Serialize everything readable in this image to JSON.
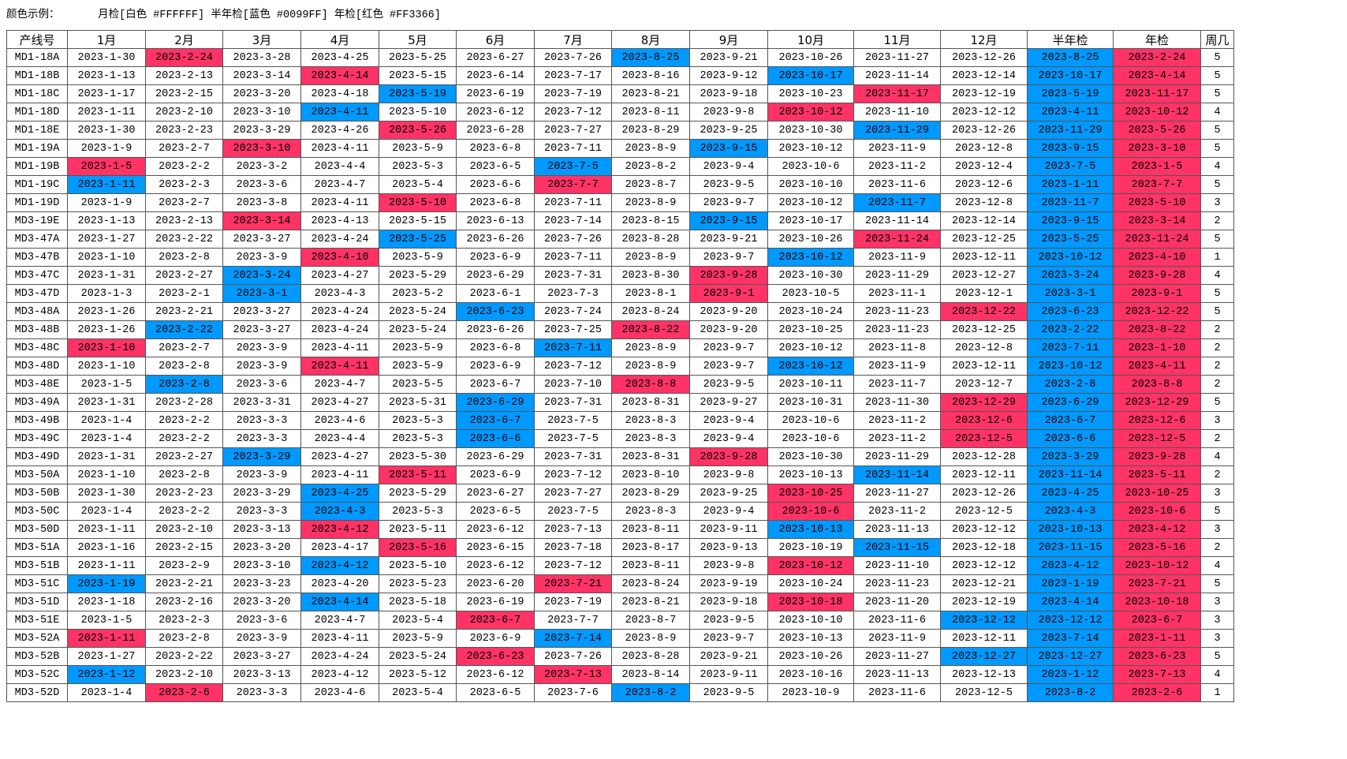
{
  "legend": {
    "label": "颜色示例：",
    "monthly": "月检[白色 #FFFFFF]",
    "half_year": "半年检[蓝色 #0099FF]",
    "yearly": "年检[红色 #FF3366]"
  },
  "colors": {
    "monthly": "#FFFFFF",
    "half_year": "#0099FF",
    "yearly": "#FF3366"
  },
  "columns": [
    "产线号",
    "1月",
    "2月",
    "3月",
    "4月",
    "5月",
    "6月",
    "7月",
    "8月",
    "9月",
    "10月",
    "11月",
    "12月",
    "半年检",
    "年检",
    "周几"
  ],
  "rows": [
    {
      "line": "MD1-18A",
      "months": [
        "2023-1-30",
        "2023-2-24",
        "2023-3-28",
        "2023-4-25",
        "2023-5-25",
        "2023-6-27",
        "2023-7-26",
        "2023-8-25",
        "2023-9-21",
        "2023-10-26",
        "2023-11-27",
        "2023-12-26"
      ],
      "half": "2023-8-25",
      "year": "2023-2-24",
      "weekday": "5",
      "blue": 8,
      "red": 2
    },
    {
      "line": "MD1-18B",
      "months": [
        "2023-1-13",
        "2023-2-13",
        "2023-3-14",
        "2023-4-14",
        "2023-5-15",
        "2023-6-14",
        "2023-7-17",
        "2023-8-16",
        "2023-9-12",
        "2023-10-17",
        "2023-11-14",
        "2023-12-14"
      ],
      "half": "2023-10-17",
      "year": "2023-4-14",
      "weekday": "5",
      "blue": 10,
      "red": 4
    },
    {
      "line": "MD1-18C",
      "months": [
        "2023-1-17",
        "2023-2-15",
        "2023-3-20",
        "2023-4-18",
        "2023-5-19",
        "2023-6-19",
        "2023-7-19",
        "2023-8-21",
        "2023-9-18",
        "2023-10-23",
        "2023-11-17",
        "2023-12-19"
      ],
      "half": "2023-5-19",
      "year": "2023-11-17",
      "weekday": "5",
      "blue": 5,
      "red": 11
    },
    {
      "line": "MD1-18D",
      "months": [
        "2023-1-11",
        "2023-2-10",
        "2023-3-10",
        "2023-4-11",
        "2023-5-10",
        "2023-6-12",
        "2023-7-12",
        "2023-8-11",
        "2023-9-8",
        "2023-10-12",
        "2023-11-10",
        "2023-12-12"
      ],
      "half": "2023-4-11",
      "year": "2023-10-12",
      "weekday": "4",
      "blue": 4,
      "red": 10
    },
    {
      "line": "MD1-18E",
      "months": [
        "2023-1-30",
        "2023-2-23",
        "2023-3-29",
        "2023-4-26",
        "2023-5-26",
        "2023-6-28",
        "2023-7-27",
        "2023-8-29",
        "2023-9-25",
        "2023-10-30",
        "2023-11-29",
        "2023-12-26"
      ],
      "half": "2023-11-29",
      "year": "2023-5-26",
      "weekday": "5",
      "blue": 11,
      "red": 5
    },
    {
      "line": "MD1-19A",
      "months": [
        "2023-1-9",
        "2023-2-7",
        "2023-3-10",
        "2023-4-11",
        "2023-5-9",
        "2023-6-8",
        "2023-7-11",
        "2023-8-9",
        "2023-9-15",
        "2023-10-12",
        "2023-11-9",
        "2023-12-8"
      ],
      "half": "2023-9-15",
      "year": "2023-3-10",
      "weekday": "5",
      "blue": 9,
      "red": 3
    },
    {
      "line": "MD1-19B",
      "months": [
        "2023-1-5",
        "2023-2-2",
        "2023-3-2",
        "2023-4-4",
        "2023-5-3",
        "2023-6-5",
        "2023-7-5",
        "2023-8-2",
        "2023-9-4",
        "2023-10-6",
        "2023-11-2",
        "2023-12-4"
      ],
      "half": "2023-7-5",
      "year": "2023-1-5",
      "weekday": "4",
      "blue": 7,
      "red": 1
    },
    {
      "line": "MD1-19C",
      "months": [
        "2023-1-11",
        "2023-2-3",
        "2023-3-6",
        "2023-4-7",
        "2023-5-4",
        "2023-6-6",
        "2023-7-7",
        "2023-8-7",
        "2023-9-5",
        "2023-10-10",
        "2023-11-6",
        "2023-12-6"
      ],
      "half": "2023-1-11",
      "year": "2023-7-7",
      "weekday": "5",
      "blue": 1,
      "red": 7
    },
    {
      "line": "MD1-19D",
      "months": [
        "2023-1-9",
        "2023-2-7",
        "2023-3-8",
        "2023-4-11",
        "2023-5-10",
        "2023-6-8",
        "2023-7-11",
        "2023-8-9",
        "2023-9-7",
        "2023-10-12",
        "2023-11-7",
        "2023-12-8"
      ],
      "half": "2023-11-7",
      "year": "2023-5-10",
      "weekday": "3",
      "blue": 11,
      "red": 5
    },
    {
      "line": "MD3-19E",
      "months": [
        "2023-1-13",
        "2023-2-13",
        "2023-3-14",
        "2023-4-13",
        "2023-5-15",
        "2023-6-13",
        "2023-7-14",
        "2023-8-15",
        "2023-9-15",
        "2023-10-17",
        "2023-11-14",
        "2023-12-14"
      ],
      "half": "2023-9-15",
      "year": "2023-3-14",
      "weekday": "2",
      "blue": 9,
      "red": 3
    },
    {
      "line": "MD3-47A",
      "months": [
        "2023-1-27",
        "2023-2-22",
        "2023-3-27",
        "2023-4-24",
        "2023-5-25",
        "2023-6-26",
        "2023-7-26",
        "2023-8-28",
        "2023-9-21",
        "2023-10-26",
        "2023-11-24",
        "2023-12-25"
      ],
      "half": "2023-5-25",
      "year": "2023-11-24",
      "weekday": "5",
      "blue": 5,
      "red": 11
    },
    {
      "line": "MD3-47B",
      "months": [
        "2023-1-10",
        "2023-2-8",
        "2023-3-9",
        "2023-4-10",
        "2023-5-9",
        "2023-6-9",
        "2023-7-11",
        "2023-8-9",
        "2023-9-7",
        "2023-10-12",
        "2023-11-9",
        "2023-12-11"
      ],
      "half": "2023-10-12",
      "year": "2023-4-10",
      "weekday": "1",
      "blue": 10,
      "red": 4
    },
    {
      "line": "MD3-47C",
      "months": [
        "2023-1-31",
        "2023-2-27",
        "2023-3-24",
        "2023-4-27",
        "2023-5-29",
        "2023-6-29",
        "2023-7-31",
        "2023-8-30",
        "2023-9-28",
        "2023-10-30",
        "2023-11-29",
        "2023-12-27"
      ],
      "half": "2023-3-24",
      "year": "2023-9-28",
      "weekday": "4",
      "blue": 3,
      "red": 9
    },
    {
      "line": "MD3-47D",
      "months": [
        "2023-1-3",
        "2023-2-1",
        "2023-3-1",
        "2023-4-3",
        "2023-5-2",
        "2023-6-1",
        "2023-7-3",
        "2023-8-1",
        "2023-9-1",
        "2023-10-5",
        "2023-11-1",
        "2023-12-1"
      ],
      "half": "2023-3-1",
      "year": "2023-9-1",
      "weekday": "5",
      "blue": 3,
      "red": 9
    },
    {
      "line": "MD3-48A",
      "months": [
        "2023-1-26",
        "2023-2-21",
        "2023-3-27",
        "2023-4-24",
        "2023-5-24",
        "2023-6-23",
        "2023-7-24",
        "2023-8-24",
        "2023-9-20",
        "2023-10-24",
        "2023-11-23",
        "2023-12-22"
      ],
      "half": "2023-6-23",
      "year": "2023-12-22",
      "weekday": "5",
      "blue": 6,
      "red": 12
    },
    {
      "line": "MD3-48B",
      "months": [
        "2023-1-26",
        "2023-2-22",
        "2023-3-27",
        "2023-4-24",
        "2023-5-24",
        "2023-6-26",
        "2023-7-25",
        "2023-8-22",
        "2023-9-20",
        "2023-10-25",
        "2023-11-23",
        "2023-12-25"
      ],
      "half": "2023-2-22",
      "year": "2023-8-22",
      "weekday": "2",
      "blue": 2,
      "red": 8
    },
    {
      "line": "MD3-48C",
      "months": [
        "2023-1-10",
        "2023-2-7",
        "2023-3-9",
        "2023-4-11",
        "2023-5-9",
        "2023-6-8",
        "2023-7-11",
        "2023-8-9",
        "2023-9-7",
        "2023-10-12",
        "2023-11-8",
        "2023-12-8"
      ],
      "half": "2023-7-11",
      "year": "2023-1-10",
      "weekday": "2",
      "blue": 7,
      "red": 1
    },
    {
      "line": "MD3-48D",
      "months": [
        "2023-1-10",
        "2023-2-8",
        "2023-3-9",
        "2023-4-11",
        "2023-5-9",
        "2023-6-9",
        "2023-7-12",
        "2023-8-9",
        "2023-9-7",
        "2023-10-12",
        "2023-11-9",
        "2023-12-11"
      ],
      "half": "2023-10-12",
      "year": "2023-4-11",
      "weekday": "2",
      "blue": 10,
      "red": 4
    },
    {
      "line": "MD3-48E",
      "months": [
        "2023-1-5",
        "2023-2-8",
        "2023-3-6",
        "2023-4-7",
        "2023-5-5",
        "2023-6-7",
        "2023-7-10",
        "2023-8-8",
        "2023-9-5",
        "2023-10-11",
        "2023-11-7",
        "2023-12-7"
      ],
      "half": "2023-2-8",
      "year": "2023-8-8",
      "weekday": "2",
      "blue": 2,
      "red": 8
    },
    {
      "line": "MD3-49A",
      "months": [
        "2023-1-31",
        "2023-2-28",
        "2023-3-31",
        "2023-4-27",
        "2023-5-31",
        "2023-6-29",
        "2023-7-31",
        "2023-8-31",
        "2023-9-27",
        "2023-10-31",
        "2023-11-30",
        "2023-12-29"
      ],
      "half": "2023-6-29",
      "year": "2023-12-29",
      "weekday": "5",
      "blue": 6,
      "red": 12
    },
    {
      "line": "MD3-49B",
      "months": [
        "2023-1-4",
        "2023-2-2",
        "2023-3-3",
        "2023-4-6",
        "2023-5-3",
        "2023-6-7",
        "2023-7-5",
        "2023-8-3",
        "2023-9-4",
        "2023-10-6",
        "2023-11-2",
        "2023-12-6"
      ],
      "half": "2023-6-7",
      "year": "2023-12-6",
      "weekday": "3",
      "blue": 6,
      "red": 12
    },
    {
      "line": "MD3-49C",
      "months": [
        "2023-1-4",
        "2023-2-2",
        "2023-3-3",
        "2023-4-4",
        "2023-5-3",
        "2023-6-6",
        "2023-7-5",
        "2023-8-3",
        "2023-9-4",
        "2023-10-6",
        "2023-11-2",
        "2023-12-5"
      ],
      "half": "2023-6-6",
      "year": "2023-12-5",
      "weekday": "2",
      "blue": 6,
      "red": 12
    },
    {
      "line": "MD3-49D",
      "months": [
        "2023-1-31",
        "2023-2-27",
        "2023-3-29",
        "2023-4-27",
        "2023-5-30",
        "2023-6-29",
        "2023-7-31",
        "2023-8-31",
        "2023-9-28",
        "2023-10-30",
        "2023-11-29",
        "2023-12-28"
      ],
      "half": "2023-3-29",
      "year": "2023-9-28",
      "weekday": "4",
      "blue": 3,
      "red": 9
    },
    {
      "line": "MD3-50A",
      "months": [
        "2023-1-10",
        "2023-2-8",
        "2023-3-9",
        "2023-4-11",
        "2023-5-11",
        "2023-6-9",
        "2023-7-12",
        "2023-8-10",
        "2023-9-8",
        "2023-10-13",
        "2023-11-14",
        "2023-12-11"
      ],
      "half": "2023-11-14",
      "year": "2023-5-11",
      "weekday": "2",
      "blue": 11,
      "red": 5
    },
    {
      "line": "MD3-50B",
      "months": [
        "2023-1-30",
        "2023-2-23",
        "2023-3-29",
        "2023-4-25",
        "2023-5-29",
        "2023-6-27",
        "2023-7-27",
        "2023-8-29",
        "2023-9-25",
        "2023-10-25",
        "2023-11-27",
        "2023-12-26"
      ],
      "half": "2023-4-25",
      "year": "2023-10-25",
      "weekday": "3",
      "blue": 4,
      "red": 10
    },
    {
      "line": "MD3-50C",
      "months": [
        "2023-1-4",
        "2023-2-2",
        "2023-3-3",
        "2023-4-3",
        "2023-5-3",
        "2023-6-5",
        "2023-7-5",
        "2023-8-3",
        "2023-9-4",
        "2023-10-6",
        "2023-11-2",
        "2023-12-5"
      ],
      "half": "2023-4-3",
      "year": "2023-10-6",
      "weekday": "5",
      "blue": 4,
      "red": 10
    },
    {
      "line": "MD3-50D",
      "months": [
        "2023-1-11",
        "2023-2-10",
        "2023-3-13",
        "2023-4-12",
        "2023-5-11",
        "2023-6-12",
        "2023-7-13",
        "2023-8-11",
        "2023-9-11",
        "2023-10-13",
        "2023-11-13",
        "2023-12-12"
      ],
      "half": "2023-10-13",
      "year": "2023-4-12",
      "weekday": "3",
      "blue": 10,
      "red": 4
    },
    {
      "line": "MD3-51A",
      "months": [
        "2023-1-16",
        "2023-2-15",
        "2023-3-20",
        "2023-4-17",
        "2023-5-16",
        "2023-6-15",
        "2023-7-18",
        "2023-8-17",
        "2023-9-13",
        "2023-10-19",
        "2023-11-15",
        "2023-12-18"
      ],
      "half": "2023-11-15",
      "year": "2023-5-16",
      "weekday": "2",
      "blue": 11,
      "red": 5
    },
    {
      "line": "MD3-51B",
      "months": [
        "2023-1-11",
        "2023-2-9",
        "2023-3-10",
        "2023-4-12",
        "2023-5-10",
        "2023-6-12",
        "2023-7-12",
        "2023-8-11",
        "2023-9-8",
        "2023-10-12",
        "2023-11-10",
        "2023-12-12"
      ],
      "half": "2023-4-12",
      "year": "2023-10-12",
      "weekday": "4",
      "blue": 4,
      "red": 10
    },
    {
      "line": "MD3-51C",
      "months": [
        "2023-1-19",
        "2023-2-21",
        "2023-3-23",
        "2023-4-20",
        "2023-5-23",
        "2023-6-20",
        "2023-7-21",
        "2023-8-24",
        "2023-9-19",
        "2023-10-24",
        "2023-11-23",
        "2023-12-21"
      ],
      "half": "2023-1-19",
      "year": "2023-7-21",
      "weekday": "5",
      "blue": 1,
      "red": 7
    },
    {
      "line": "MD3-51D",
      "months": [
        "2023-1-18",
        "2023-2-16",
        "2023-3-20",
        "2023-4-14",
        "2023-5-18",
        "2023-6-19",
        "2023-7-19",
        "2023-8-21",
        "2023-9-18",
        "2023-10-18",
        "2023-11-20",
        "2023-12-19"
      ],
      "half": "2023-4-14",
      "year": "2023-10-18",
      "weekday": "3",
      "blue": 4,
      "red": 10
    },
    {
      "line": "MD3-51E",
      "months": [
        "2023-1-5",
        "2023-2-3",
        "2023-3-6",
        "2023-4-7",
        "2023-5-4",
        "2023-6-7",
        "2023-7-7",
        "2023-8-7",
        "2023-9-5",
        "2023-10-10",
        "2023-11-6",
        "2023-12-12"
      ],
      "half": "2023-12-12",
      "year": "2023-6-7",
      "weekday": "3",
      "blue": 12,
      "red": 6
    },
    {
      "line": "MD3-52A",
      "months": [
        "2023-1-11",
        "2023-2-8",
        "2023-3-9",
        "2023-4-11",
        "2023-5-9",
        "2023-6-9",
        "2023-7-14",
        "2023-8-9",
        "2023-9-7",
        "2023-10-13",
        "2023-11-9",
        "2023-12-11"
      ],
      "half": "2023-7-14",
      "year": "2023-1-11",
      "weekday": "3",
      "blue": 7,
      "red": 1
    },
    {
      "line": "MD3-52B",
      "months": [
        "2023-1-27",
        "2023-2-22",
        "2023-3-27",
        "2023-4-24",
        "2023-5-24",
        "2023-6-23",
        "2023-7-26",
        "2023-8-28",
        "2023-9-21",
        "2023-10-26",
        "2023-11-27",
        "2023-12-27"
      ],
      "half": "2023-12-27",
      "year": "2023-6-23",
      "weekday": "5",
      "blue": 12,
      "red": 6
    },
    {
      "line": "MD3-52C",
      "months": [
        "2023-1-12",
        "2023-2-10",
        "2023-3-13",
        "2023-4-12",
        "2023-5-12",
        "2023-6-12",
        "2023-7-13",
        "2023-8-14",
        "2023-9-11",
        "2023-10-16",
        "2023-11-13",
        "2023-12-13"
      ],
      "half": "2023-1-12",
      "year": "2023-7-13",
      "weekday": "4",
      "blue": 1,
      "red": 7
    },
    {
      "line": "MD3-52D",
      "months": [
        "2023-1-4",
        "2023-2-6",
        "2023-3-3",
        "2023-4-6",
        "2023-5-4",
        "2023-6-5",
        "2023-7-6",
        "2023-8-2",
        "2023-9-5",
        "2023-10-9",
        "2023-11-6",
        "2023-12-5"
      ],
      "half": "2023-8-2",
      "year": "2023-2-6",
      "weekday": "1",
      "blue": 8,
      "red": 2
    }
  ]
}
